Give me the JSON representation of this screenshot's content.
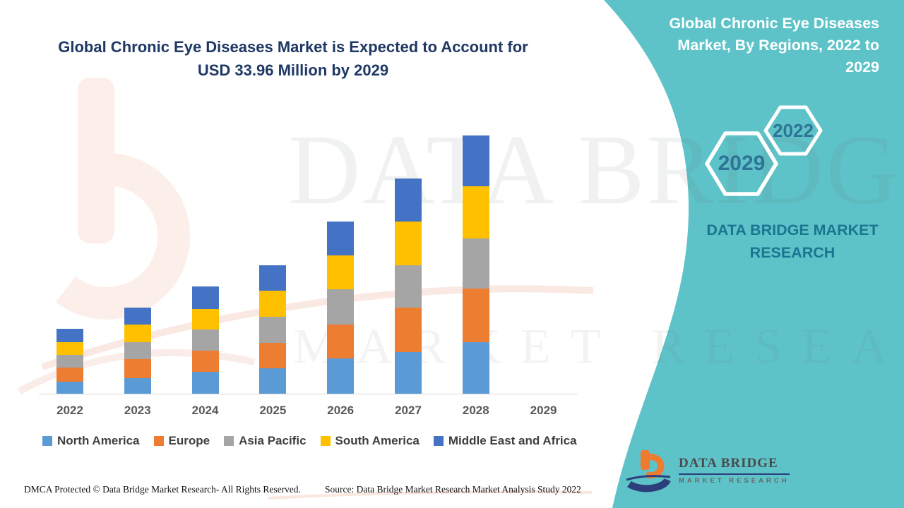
{
  "colors": {
    "panel_teal": "#5EC3C8",
    "title_navy": "#1F3864",
    "hex_year_text": "#2F7396",
    "brand_teal": "#1A7690",
    "axis_label_gray": "#595959",
    "logo_orange": "#EE7B30",
    "logo_navy": "#2C3E7B"
  },
  "left_title": {
    "line1": "Global Chronic Eye Diseases Market is Expected to Account for",
    "line2": "USD 33.96 Million by 2029"
  },
  "right_panel": {
    "title_line1": "Global Chronic Eye Diseases",
    "title_line2": "Market, By Regions, 2022 to",
    "title_line3": "2029",
    "hexagons": [
      {
        "label": "2029"
      },
      {
        "label": "2022"
      }
    ],
    "brand_line1": "DATA BRIDGE MARKET",
    "brand_line2": "RESEARCH",
    "logo": {
      "name_line": "DATA BRIDGE",
      "tagline": "MARKET RESEARCH"
    }
  },
  "watermark": {
    "line1": "DATA BRIDGE",
    "line2": "MARKET RESEARCH"
  },
  "footer": {
    "left": "DMCA Protected © Data Bridge Market Research- All Rights Reserved.",
    "right": "Source: Data Bridge Market Research Market Analysis Study 2022"
  },
  "chart_data": {
    "type": "bar",
    "stacked": true,
    "title": "Global Chronic Eye Diseases Market, By Regions, 2022 to 2029",
    "categories": [
      "2022",
      "2023",
      "2024",
      "2025",
      "2026",
      "2027",
      "2028",
      "2029"
    ],
    "series": [
      {
        "name": "North America",
        "color": "#5B9BD5",
        "values": [
          17,
          22,
          31,
          36,
          50,
          59,
          73,
          0
        ]
      },
      {
        "name": "Europe",
        "color": "#ED7D31",
        "values": [
          20,
          27,
          30,
          36,
          48,
          63,
          76,
          0
        ]
      },
      {
        "name": "Asia Pacific",
        "color": "#A5A5A5",
        "values": [
          18,
          24,
          30,
          37,
          50,
          60,
          71,
          0
        ]
      },
      {
        "name": "South America",
        "color": "#FFC000",
        "values": [
          18,
          25,
          29,
          37,
          48,
          62,
          74,
          0
        ]
      },
      {
        "name": "Middle East and Africa",
        "color": "#4472C4",
        "values": [
          19,
          24,
          32,
          36,
          48,
          61,
          72,
          0
        ]
      }
    ],
    "stack_order": "bottom-to-top as listed",
    "value_axis": {
      "visible": false,
      "unit": "relative height (no value labels shown in figure)"
    },
    "legend_position": "bottom",
    "grid": false
  }
}
